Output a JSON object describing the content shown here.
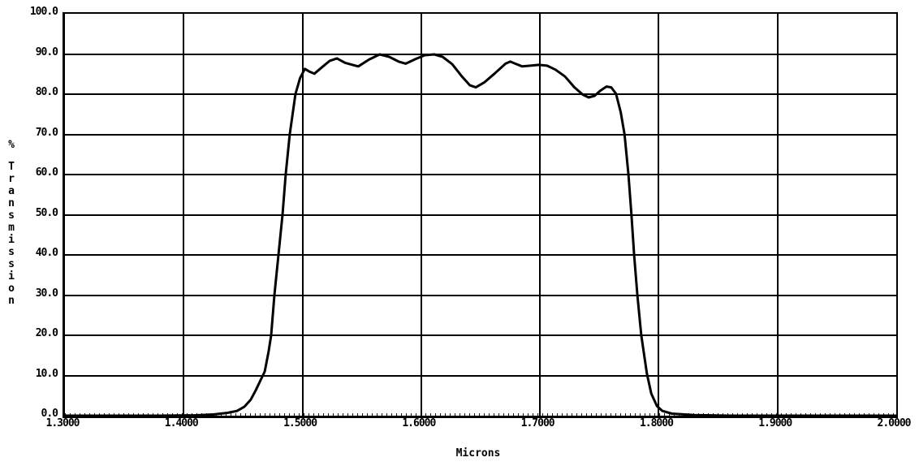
{
  "chart_data": {
    "type": "line",
    "title": "",
    "xlabel": "Microns",
    "ylabel": "% Transmission",
    "xlim": [
      1.3,
      2.0
    ],
    "ylim": [
      0,
      100
    ],
    "grid": true,
    "legend": false,
    "line_color": "#000000",
    "background_color": "#ffffff",
    "x_ticks": [
      "1.3000",
      "1.4000",
      "1.5000",
      "1.6000",
      "1.7000",
      "1.8000",
      "1.9000",
      "2.0000"
    ],
    "y_ticks": [
      "100.0",
      "90.0",
      "80.0",
      "70.0",
      "60.0",
      "50.0",
      "40.0",
      "30.0",
      "20.0",
      "10.0",
      "0.0"
    ],
    "series": [
      {
        "name": "transmission",
        "color": "#000000",
        "points": [
          [
            1.3,
            0
          ],
          [
            1.38,
            0
          ],
          [
            1.41,
            0.1
          ],
          [
            1.425,
            0.3
          ],
          [
            1.437,
            0.7
          ],
          [
            1.445,
            1.2
          ],
          [
            1.451,
            2.2
          ],
          [
            1.4565,
            4
          ],
          [
            1.461,
            6.5
          ],
          [
            1.465,
            9
          ],
          [
            1.4682,
            11
          ],
          [
            1.4715,
            16
          ],
          [
            1.4736,
            20
          ],
          [
            1.4764,
            30
          ],
          [
            1.4798,
            40
          ],
          [
            1.4832,
            50
          ],
          [
            1.4859,
            60
          ],
          [
            1.4893,
            70
          ],
          [
            1.4941,
            80
          ],
          [
            1.498,
            84
          ],
          [
            1.502,
            86.3
          ],
          [
            1.506,
            85.6
          ],
          [
            1.51,
            85.1
          ],
          [
            1.516,
            86.6
          ],
          [
            1.523,
            88.3
          ],
          [
            1.529,
            88.9
          ],
          [
            1.536,
            87.8
          ],
          [
            1.547,
            86.9
          ],
          [
            1.556,
            88.6
          ],
          [
            1.565,
            89.9
          ],
          [
            1.573,
            89.3
          ],
          [
            1.581,
            88.1
          ],
          [
            1.587,
            87.6
          ],
          [
            1.595,
            88.7
          ],
          [
            1.603,
            89.7
          ],
          [
            1.611,
            89.9
          ],
          [
            1.618,
            89.3
          ],
          [
            1.626,
            87.5
          ],
          [
            1.634,
            84.5
          ],
          [
            1.641,
            82.2
          ],
          [
            1.646,
            81.7
          ],
          [
            1.653,
            82.9
          ],
          [
            1.662,
            85.2
          ],
          [
            1.671,
            87.6
          ],
          [
            1.675,
            88.1
          ],
          [
            1.68,
            87.5
          ],
          [
            1.685,
            86.9
          ],
          [
            1.692,
            87.1
          ],
          [
            1.699,
            87.3
          ],
          [
            1.706,
            87.1
          ],
          [
            1.713,
            86.1
          ],
          [
            1.721,
            84.4
          ],
          [
            1.729,
            81.7
          ],
          [
            1.736,
            79.9
          ],
          [
            1.741,
            79.2
          ],
          [
            1.746,
            79.6
          ],
          [
            1.751,
            80.9
          ],
          [
            1.756,
            81.9
          ],
          [
            1.76,
            81.7
          ],
          [
            1.764,
            80.1
          ],
          [
            1.768,
            75.5
          ],
          [
            1.7712,
            70
          ],
          [
            1.7745,
            60
          ],
          [
            1.777,
            50
          ],
          [
            1.7793,
            40
          ],
          [
            1.782,
            30
          ],
          [
            1.7853,
            20
          ],
          [
            1.79,
            10.5
          ],
          [
            1.7937,
            5.5
          ],
          [
            1.7985,
            2.4
          ],
          [
            1.803,
            1.2
          ],
          [
            1.811,
            0.5
          ],
          [
            1.83,
            0.15
          ],
          [
            1.86,
            0
          ],
          [
            1.95,
            0
          ],
          [
            2.0,
            0
          ]
        ]
      }
    ]
  }
}
